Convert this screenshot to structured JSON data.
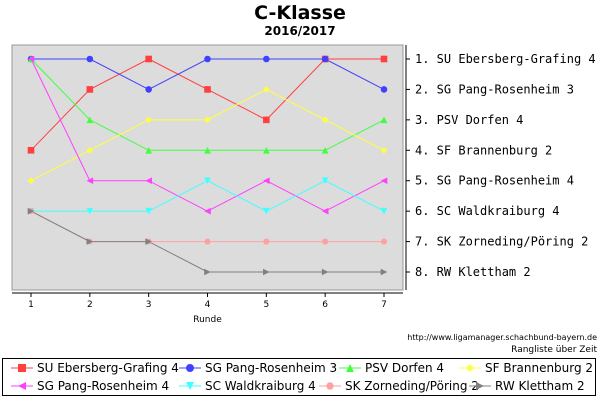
{
  "header": {
    "title": "C-Klasse",
    "subtitle": "2016/2017"
  },
  "source": {
    "url": "http://www.ligamanager.schachbund-bayern.de",
    "caption": "Rangliste über Zeit"
  },
  "chart_data": {
    "type": "line",
    "title": "C-Klasse",
    "subtitle": "2016/2017",
    "xlabel": "Runde",
    "ylabel": "",
    "x": [
      1,
      2,
      3,
      4,
      5,
      6,
      7
    ],
    "ylim": [
      1,
      8
    ],
    "y_inverted": true,
    "y_tick_labels": [
      "1. SU Ebersberg-Grafing 4",
      "2. SG Pang-Rosenheim 3",
      "3. PSV Dorfen 4",
      "4. SF Brannenburg 2",
      "5. SG Pang-Rosenheim 4",
      "6. SC Waldkraiburg 4",
      "7. SK Zorneding/Pöring 2",
      "8. RW Klettham 2"
    ],
    "grid": false,
    "background": "#dcdcdc",
    "legend": "bottom",
    "series": [
      {
        "name": "SU Ebersberg-Grafing 4",
        "color": "#ff4040",
        "marker": "square",
        "values": [
          4,
          2,
          1,
          2,
          3,
          1,
          1
        ]
      },
      {
        "name": "SG Pang-Rosenheim 3",
        "color": "#4040ff",
        "marker": "circle",
        "values": [
          1,
          1,
          2,
          1,
          1,
          1,
          2
        ]
      },
      {
        "name": "PSV Dorfen 4",
        "color": "#40ff40",
        "marker": "triangle-up",
        "values": [
          1,
          3,
          4,
          4,
          4,
          4,
          3
        ]
      },
      {
        "name": "SF Brannenburg 2",
        "color": "#ffff40",
        "marker": "diamond",
        "values": [
          5,
          4,
          3,
          3,
          2,
          3,
          4
        ]
      },
      {
        "name": "SG Pang-Rosenheim 4",
        "color": "#ff40ff",
        "marker": "triangle-left",
        "values": [
          1,
          5,
          5,
          6,
          5,
          6,
          5
        ]
      },
      {
        "name": "SC Waldkraiburg 4",
        "color": "#40ffff",
        "marker": "triangle-down",
        "values": [
          6,
          6,
          6,
          5,
          6,
          5,
          6
        ]
      },
      {
        "name": "SK Zorneding/Pöring 2",
        "color": "#ffa0a0",
        "marker": "hexagon",
        "values": [
          6,
          7,
          7,
          7,
          7,
          7,
          7
        ]
      },
      {
        "name": "RW Klettham 2",
        "color": "#808080",
        "marker": "triangle-right",
        "values": [
          6,
          7,
          7,
          8,
          8,
          8,
          8
        ]
      }
    ]
  }
}
